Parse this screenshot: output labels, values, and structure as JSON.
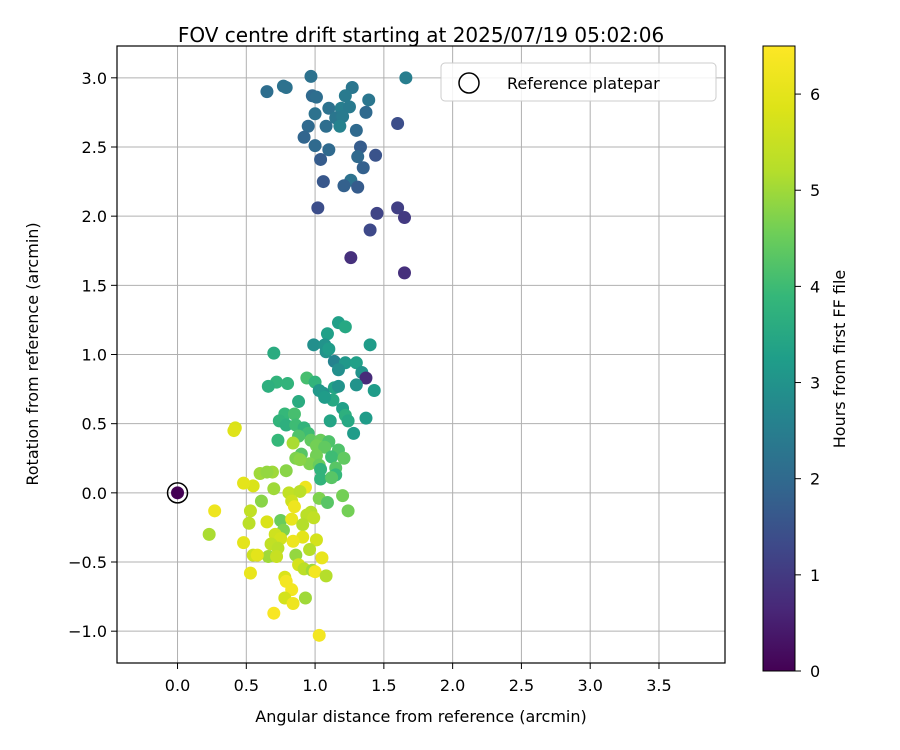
{
  "chart_data": {
    "type": "scatter",
    "title": "FOV centre drift starting at 2025/07/19 05:02:06",
    "xlabel": "Angular distance from reference (arcmin)",
    "ylabel": "Rotation from reference (arcmin)",
    "xlim": [
      -0.44,
      3.98
    ],
    "ylim": [
      -1.23,
      3.23
    ],
    "xticks": [
      0.0,
      0.5,
      1.0,
      1.5,
      2.0,
      2.5,
      3.0,
      3.5
    ],
    "xtick_labels": [
      "0.0",
      "0.5",
      "1.0",
      "1.5",
      "2.0",
      "2.5",
      "3.0",
      "3.5"
    ],
    "yticks": [
      -1.0,
      -0.5,
      0.0,
      0.5,
      1.0,
      1.5,
      2.0,
      2.5,
      3.0
    ],
    "ytick_labels": [
      "−1.0",
      "−0.5",
      "0.0",
      "0.5",
      "1.0",
      "1.5",
      "2.0",
      "2.5",
      "3.0"
    ],
    "grid": true,
    "legend": {
      "position": "top-right",
      "entries": [
        "Reference platepar"
      ]
    },
    "colorbar": {
      "label": "Hours from first FF file",
      "range": [
        0,
        6.5
      ],
      "ticks": [
        0,
        1,
        2,
        3,
        4,
        5,
        6
      ],
      "tick_labels": [
        "0",
        "1",
        "2",
        "3",
        "4",
        "5",
        "6"
      ],
      "colormap": "viridis"
    },
    "reference_point": {
      "x": 0.0,
      "y": 0.0,
      "hours": 0.0
    },
    "points": [
      [
        0.97,
        3.01,
        2.2
      ],
      [
        1.27,
        2.93,
        2.3
      ],
      [
        1.66,
        3.0,
        2.5
      ],
      [
        0.65,
        2.9,
        2.1
      ],
      [
        0.77,
        2.94,
        2.2
      ],
      [
        0.79,
        2.93,
        2.2
      ],
      [
        0.98,
        2.87,
        2.0
      ],
      [
        1.01,
        2.86,
        2.1
      ],
      [
        1.22,
        2.87,
        2.4
      ],
      [
        1.39,
        2.84,
        2.3
      ],
      [
        1.1,
        2.78,
        2.2
      ],
      [
        1.19,
        2.78,
        2.5
      ],
      [
        1.25,
        2.79,
        2.4
      ],
      [
        1.0,
        2.74,
        2.2
      ],
      [
        1.37,
        2.75,
        2.0
      ],
      [
        1.15,
        2.71,
        2.3
      ],
      [
        1.2,
        2.72,
        2.4
      ],
      [
        1.08,
        2.65,
        2.1
      ],
      [
        0.95,
        2.65,
        2.0
      ],
      [
        1.18,
        2.65,
        2.6
      ],
      [
        1.6,
        2.67,
        1.4
      ],
      [
        1.3,
        2.62,
        2.0
      ],
      [
        0.92,
        2.57,
        1.9
      ],
      [
        1.0,
        2.51,
        2.0
      ],
      [
        1.33,
        2.5,
        1.7
      ],
      [
        1.1,
        2.48,
        2.0
      ],
      [
        1.31,
        2.43,
        2.0
      ],
      [
        1.44,
        2.44,
        1.5
      ],
      [
        1.04,
        2.41,
        1.7
      ],
      [
        1.35,
        2.35,
        1.8
      ],
      [
        1.26,
        2.26,
        2.2
      ],
      [
        1.06,
        2.25,
        1.6
      ],
      [
        1.21,
        2.22,
        1.8
      ],
      [
        1.31,
        2.21,
        1.7
      ],
      [
        1.02,
        2.06,
        1.4
      ],
      [
        1.45,
        2.02,
        1.2
      ],
      [
        1.6,
        2.06,
        1.1
      ],
      [
        1.65,
        1.99,
        1.0
      ],
      [
        1.4,
        1.9,
        1.3
      ],
      [
        1.26,
        1.7,
        0.8
      ],
      [
        1.65,
        1.59,
        0.8
      ],
      [
        1.17,
        1.23,
        3.3
      ],
      [
        1.09,
        1.15,
        3.3
      ],
      [
        1.22,
        1.2,
        3.5
      ],
      [
        0.99,
        1.07,
        2.9
      ],
      [
        1.07,
        1.07,
        3.0
      ],
      [
        1.4,
        1.07,
        3.2
      ],
      [
        1.08,
        1.02,
        3.0
      ],
      [
        1.1,
        1.04,
        3.2
      ],
      [
        0.7,
        1.01,
        3.6
      ],
      [
        1.14,
        0.95,
        2.6
      ],
      [
        1.22,
        0.94,
        3.1
      ],
      [
        1.3,
        0.94,
        3.3
      ],
      [
        1.17,
        0.89,
        2.9
      ],
      [
        1.34,
        0.87,
        3.0
      ],
      [
        1.37,
        0.83,
        0.7
      ],
      [
        0.94,
        0.83,
        4.1
      ],
      [
        1.0,
        0.8,
        3.8
      ],
      [
        0.8,
        0.79,
        3.8
      ],
      [
        0.72,
        0.8,
        3.8
      ],
      [
        0.66,
        0.77,
        3.7
      ],
      [
        1.14,
        0.76,
        3.4
      ],
      [
        1.17,
        0.77,
        3.0
      ],
      [
        1.3,
        0.78,
        3.0
      ],
      [
        1.06,
        0.72,
        3.0
      ],
      [
        1.43,
        0.74,
        3.2
      ],
      [
        1.03,
        0.74,
        3.1
      ],
      [
        1.13,
        0.67,
        3.5
      ],
      [
        1.07,
        0.69,
        3.2
      ],
      [
        1.2,
        0.61,
        3.3
      ],
      [
        0.88,
        0.66,
        3.6
      ],
      [
        1.22,
        0.56,
        3.7
      ],
      [
        1.37,
        0.54,
        3.2
      ],
      [
        1.11,
        0.52,
        3.4
      ],
      [
        1.24,
        0.52,
        3.5
      ],
      [
        0.78,
        0.57,
        3.9
      ],
      [
        0.85,
        0.57,
        4.1
      ],
      [
        0.74,
        0.52,
        3.8
      ],
      [
        0.79,
        0.49,
        3.7
      ],
      [
        0.86,
        0.49,
        4.0
      ],
      [
        0.92,
        0.47,
        3.8
      ],
      [
        1.28,
        0.43,
        3.2
      ],
      [
        0.42,
        0.47,
        5.8
      ],
      [
        0.41,
        0.45,
        5.9
      ],
      [
        0.95,
        0.43,
        4.0
      ],
      [
        0.88,
        0.41,
        4.2
      ],
      [
        0.97,
        0.38,
        4.4
      ],
      [
        1.04,
        0.38,
        4.5
      ],
      [
        1.1,
        0.37,
        4.2
      ],
      [
        0.73,
        0.38,
        3.9
      ],
      [
        0.84,
        0.36,
        5.1
      ],
      [
        1.01,
        0.34,
        4.6
      ],
      [
        1.07,
        0.33,
        4.4
      ],
      [
        1.17,
        0.31,
        4.2
      ],
      [
        1.01,
        0.27,
        4.6
      ],
      [
        0.9,
        0.28,
        4.3
      ],
      [
        0.86,
        0.25,
        4.7
      ],
      [
        1.12,
        0.26,
        4.0
      ],
      [
        1.21,
        0.25,
        4.4
      ],
      [
        0.96,
        0.21,
        4.7
      ],
      [
        1.03,
        0.2,
        4.5
      ],
      [
        0.89,
        0.24,
        4.8
      ],
      [
        1.04,
        0.17,
        3.8
      ],
      [
        1.15,
        0.18,
        4.3
      ],
      [
        0.69,
        0.15,
        5.0
      ],
      [
        0.6,
        0.14,
        5.0
      ],
      [
        0.65,
        0.15,
        4.9
      ],
      [
        0.79,
        0.16,
        4.8
      ],
      [
        1.15,
        0.13,
        3.9
      ],
      [
        1.04,
        0.1,
        3.8
      ],
      [
        1.12,
        0.11,
        4.3
      ],
      [
        0.55,
        0.05,
        5.8
      ],
      [
        0.48,
        0.07,
        6.0
      ],
      [
        0.7,
        0.03,
        5.0
      ],
      [
        0.93,
        0.04,
        6.2
      ],
      [
        0.81,
        0.0,
        5.4
      ],
      [
        0.89,
        0.01,
        5.3
      ],
      [
        1.2,
        -0.02,
        4.6
      ],
      [
        1.03,
        -0.04,
        4.7
      ],
      [
        1.09,
        -0.07,
        4.3
      ],
      [
        0.61,
        -0.06,
        4.8
      ],
      [
        0.83,
        -0.06,
        5.6
      ],
      [
        0.85,
        -0.1,
        6.2
      ],
      [
        1.24,
        -0.13,
        4.6
      ],
      [
        0.53,
        -0.13,
        5.4
      ],
      [
        0.97,
        -0.14,
        5.2
      ],
      [
        0.94,
        -0.16,
        5.3
      ],
      [
        0.27,
        -0.13,
        6.2
      ],
      [
        0.75,
        -0.2,
        4.5
      ],
      [
        0.83,
        -0.19,
        6.1
      ],
      [
        0.99,
        -0.18,
        5.4
      ],
      [
        0.65,
        -0.21,
        5.8
      ],
      [
        0.52,
        -0.22,
        5.3
      ],
      [
        0.91,
        -0.23,
        5.2
      ],
      [
        0.23,
        -0.3,
        5.1
      ],
      [
        0.77,
        -0.27,
        4.7
      ],
      [
        0.71,
        -0.3,
        5.6
      ],
      [
        0.75,
        -0.33,
        5.7
      ],
      [
        0.91,
        -0.32,
        6.0
      ],
      [
        0.84,
        -0.35,
        6.2
      ],
      [
        1.01,
        -0.34,
        5.7
      ],
      [
        0.48,
        -0.36,
        6.0
      ],
      [
        0.68,
        -0.37,
        5.4
      ],
      [
        0.73,
        -0.4,
        5.3
      ],
      [
        0.96,
        -0.41,
        5.2
      ],
      [
        0.86,
        -0.45,
        4.9
      ],
      [
        0.55,
        -0.45,
        5.6
      ],
      [
        0.66,
        -0.46,
        5.0
      ],
      [
        0.72,
        -0.46,
        5.5
      ],
      [
        1.05,
        -0.47,
        6.1
      ],
      [
        0.58,
        -0.45,
        6.0
      ],
      [
        0.88,
        -0.52,
        5.7
      ],
      [
        0.92,
        -0.55,
        5.3
      ],
      [
        0.98,
        -0.56,
        5.0
      ],
      [
        1.0,
        -0.57,
        6.3
      ],
      [
        0.53,
        -0.58,
        6.1
      ],
      [
        1.08,
        -0.6,
        5.2
      ],
      [
        0.78,
        -0.61,
        5.8
      ],
      [
        0.79,
        -0.64,
        6.3
      ],
      [
        0.83,
        -0.7,
        6.3
      ],
      [
        0.78,
        -0.76,
        5.7
      ],
      [
        0.93,
        -0.76,
        5.0
      ],
      [
        0.84,
        -0.8,
        6.2
      ],
      [
        0.7,
        -0.87,
        6.4
      ],
      [
        1.03,
        -1.03,
        6.3
      ]
    ]
  }
}
